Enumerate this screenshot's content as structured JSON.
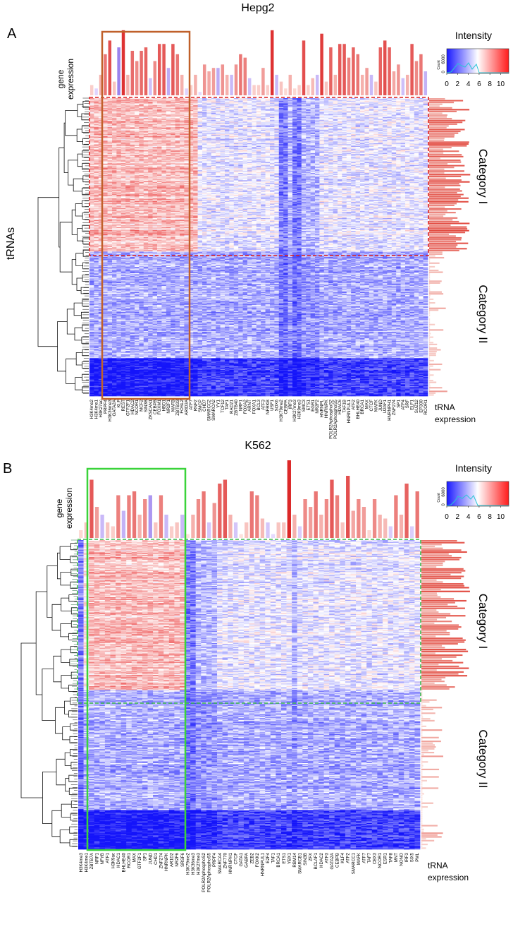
{
  "figure": {
    "panel_a_letter": "A",
    "panel_b_letter": "B"
  },
  "chart_data": [
    {
      "type": "heatmap",
      "title": "Hepg2",
      "panel": "A",
      "ylabel": "tRNAs",
      "top_track_label": [
        "gene",
        "expression"
      ],
      "right_track_label": [
        "tRNA",
        "expression"
      ],
      "category_labels": [
        "Category I",
        "Category II"
      ],
      "legend": {
        "title": "Intensity",
        "count_label": "Count",
        "count_ticks": [
          "6000",
          "0"
        ],
        "ticks": [
          0,
          2,
          4,
          6,
          8,
          10
        ],
        "range": [
          0,
          11.5
        ]
      },
      "rows": 330,
      "category_I_rows": 170,
      "columns": [
        "H3K4me2",
        "H3K4me1",
        "H3K27ac",
        "PRPF4",
        "H3K36me3",
        "GATA2A",
        "KLF",
        "REST",
        "GTF2F1",
        "HDAC2",
        "NCOR1",
        "MCF2",
        "SIN3B",
        "ZKSCAN1",
        "CEBPB",
        "FOXM1",
        "HBD1",
        "NR2F1",
        "MAFB",
        "ZBTB33",
        "FOSL2",
        "ARID3A",
        "ATF7",
        "RNF2",
        "SMCP",
        "CHD7",
        "SMARCC2",
        "SMARCA2",
        "YY1",
        "TCF12",
        "TAF1",
        "RAD21",
        "ZBTB40",
        "NRF1",
        "FOXA2",
        "ARNT",
        "FOXA1",
        "BCL3",
        "ATF3",
        "NFRKB",
        "USF1",
        "SOX6",
        "H3K79me2",
        "CEBPA",
        "IRF3",
        "H3K27me3",
        "H3K9me3",
        "SMC3",
        "ETS1",
        "EGR1",
        "NR2F2",
        "HNRNPL",
        "HNRNPK",
        "POLR2AphosphoS2",
        "POLR2AphosphoS5",
        "HDAC6",
        "TAF1B",
        "HNRNPUL1",
        "ATF2",
        "BHLHE40",
        "BRCA1",
        "MAX",
        "CTCF",
        "MAFK",
        "JUND",
        "U2AF1",
        "HNRNPH1",
        "ZNF274",
        "SP1",
        "ATF4",
        "SRF",
        "ELF1",
        "SUZ12",
        "EP300",
        "RCOR1"
      ],
      "column_pattern": [
        2,
        2,
        2,
        2,
        2,
        2,
        2,
        2,
        2,
        2,
        2,
        2,
        2,
        2,
        2,
        2,
        2,
        2,
        2,
        2,
        2,
        2,
        2,
        2,
        0,
        0,
        0,
        0,
        0,
        0,
        0,
        0,
        0,
        0,
        0,
        0,
        0,
        0,
        0,
        0,
        0,
        0,
        -2,
        -2,
        -1,
        -2,
        -2,
        -1,
        -1,
        -1,
        -1,
        0,
        0,
        0,
        0,
        0,
        0,
        0,
        0,
        0,
        0,
        0,
        0,
        0,
        0,
        0,
        0,
        0,
        0,
        0,
        0,
        0,
        0,
        0,
        0
      ],
      "gene_expression": [
        0.15,
        0.1,
        0.3,
        0.6,
        0.8,
        0.2,
        0.7,
        0.95,
        0.3,
        0.65,
        0.5,
        0.65,
        0.7,
        0.25,
        0.5,
        0.75,
        0.75,
        0.4,
        0.75,
        0.6,
        0.3,
        0.1,
        0.15,
        0.3,
        0.05,
        0.45,
        0.35,
        0.4,
        0.4,
        0.45,
        0.3,
        0.3,
        0.45,
        0.6,
        0.55,
        0.25,
        0.15,
        0.15,
        0.4,
        0.15,
        0.95,
        0.3,
        0.2,
        0.1,
        0.3,
        0.1,
        0.15,
        0.8,
        0.15,
        0.25,
        0.3,
        0.9,
        0.2,
        0.7,
        0.3,
        0.75,
        0.75,
        0.55,
        0.7,
        0.6,
        0.3,
        0.4,
        0.3,
        0.2,
        0.7,
        0.8,
        0.7,
        0.35,
        0.45,
        0.25,
        0.3,
        0.75,
        0.5,
        0.6,
        0.35
      ],
      "gene_expression_sign": [
        0,
        1,
        0,
        0,
        0,
        0,
        1,
        0,
        0,
        0,
        0,
        0,
        0,
        1,
        0,
        0,
        0,
        1,
        0,
        0,
        0,
        1,
        0,
        0,
        1,
        0,
        0,
        0,
        1,
        0,
        0,
        1,
        0,
        0,
        0,
        1,
        0,
        0,
        0,
        0,
        0,
        1,
        0,
        0,
        0,
        0,
        0,
        0,
        0,
        0,
        1,
        0,
        0,
        0,
        0,
        0,
        0,
        0,
        0,
        0,
        0,
        0,
        1,
        0,
        0,
        0,
        0,
        0,
        0,
        1,
        0,
        0,
        0,
        0,
        1
      ]
    },
    {
      "type": "heatmap",
      "title": "K562",
      "panel": "B",
      "ylabel": "",
      "top_track_label": [
        "gene",
        "expression"
      ],
      "right_track_label": [
        "tRNA",
        "expression"
      ],
      "category_labels": [
        "Category I",
        "Category II"
      ],
      "legend": {
        "title": "Intensity",
        "count_label": "Count",
        "count_ticks": [
          "6000",
          "0"
        ],
        "ticks": [
          0,
          2,
          4,
          6,
          8,
          10
        ],
        "range": [
          0,
          11.5
        ]
      },
      "rows": 330,
      "category_I_rows": 160,
      "columns": [
        "H3K4me3",
        "H3K4me1",
        "ZBTB7A",
        "NRF1",
        "NFYB",
        "ATF1",
        "H3K9ac",
        "HDAC1",
        "BHLHE40",
        "RCOR1",
        "MAX",
        "GTF2F1",
        "SP1",
        "JUND",
        "CHD1",
        "ZNF274",
        "HNRNPK",
        "AR1D2",
        "NR2F6",
        "SRSF6",
        "H3K79me2",
        "H3K36me3",
        "H3K27me3",
        "POLR2AphosphoS2",
        "POLR2AphosphoS5",
        "PRPF4",
        "SMARCA4",
        "ZNF770",
        "HNRNPH1",
        "CTCF",
        "GATA1",
        "GABPA",
        "ZEB2",
        "FOXK2",
        "HNRNPUL1",
        "E2F4",
        "TAF1",
        "BRCA1",
        "ETS1",
        "YBX1",
        "RBM14",
        "SMARCB1",
        "SIN3B",
        "ZFX",
        "BCLAF1",
        "HDAC2",
        "ATF3",
        "GATA2A",
        "CEBPB",
        "KLF4",
        "ATF2",
        "SMARCC1",
        "MAFK",
        "ATF7",
        "TAF7",
        "CBX3",
        "NCOR1",
        "ESR1",
        "TAF8",
        "MNT",
        "NONO",
        "IRF3",
        "SIX5",
        "PML"
      ],
      "column_pattern": [
        -2,
        1,
        2,
        2,
        2,
        2,
        2,
        2,
        2,
        2,
        2,
        2,
        2,
        2,
        2,
        2,
        2,
        2,
        2,
        2,
        -2,
        -2,
        -1,
        -1,
        -1,
        -1,
        0,
        0,
        0,
        0,
        0,
        0,
        0,
        0,
        0,
        0,
        0,
        0,
        0,
        0,
        -1,
        0,
        0,
        0,
        0,
        0,
        0,
        0,
        0,
        0,
        0,
        0,
        0,
        0,
        0,
        0,
        0,
        0,
        0,
        0,
        0,
        0,
        0,
        0
      ],
      "gene_expression": [
        0.1,
        0.2,
        0.75,
        0.4,
        0.3,
        0.2,
        0.15,
        0.55,
        0.35,
        0.55,
        0.6,
        0.3,
        0.5,
        0.55,
        0.2,
        0.55,
        0.3,
        0.15,
        0.2,
        0.3,
        0.05,
        0.3,
        0.5,
        0.6,
        0.2,
        0.45,
        0.7,
        0.75,
        0.3,
        0.2,
        0.05,
        0.2,
        0.6,
        0.55,
        0.25,
        0.2,
        0.05,
        0.2,
        0.2,
        1.0,
        0.3,
        0.15,
        0.5,
        0.4,
        0.6,
        0.3,
        0.5,
        0.75,
        0.55,
        0.2,
        0.8,
        0.35,
        0.5,
        0.4,
        0.1,
        0.5,
        0.3,
        0.25,
        0.15,
        0.55,
        0.3,
        0.7,
        0.15,
        0.6
      ],
      "gene_expression_sign": [
        0,
        0,
        0,
        0,
        1,
        0,
        0,
        0,
        1,
        0,
        0,
        0,
        0,
        1,
        0,
        0,
        1,
        0,
        0,
        1,
        0,
        0,
        0,
        0,
        1,
        0,
        0,
        0,
        0,
        1,
        0,
        0,
        0,
        0,
        0,
        1,
        1,
        0,
        0,
        0,
        0,
        1,
        0,
        0,
        0,
        0,
        0,
        0,
        0,
        0,
        0,
        0,
        0,
        0,
        0,
        0,
        0,
        0,
        1,
        0,
        0,
        0,
        1,
        0
      ]
    }
  ]
}
